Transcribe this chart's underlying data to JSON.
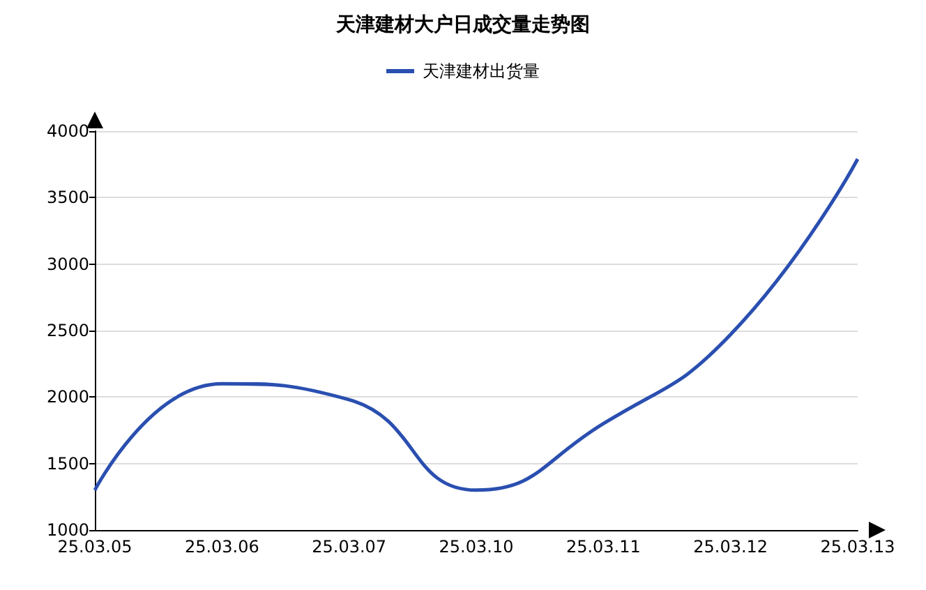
{
  "chart_data": {
    "type": "line",
    "title": "天津建材大户日成交量走势图",
    "categories": [
      "25.03.05",
      "25.03.06",
      "25.03.07",
      "25.03.10",
      "25.03.11",
      "25.03.12",
      "25.03.13"
    ],
    "series": [
      {
        "name": "天津建材出货量",
        "color": "#2a4fb0",
        "values": [
          1300,
          2100,
          1980,
          1300,
          1800,
          2470,
          3790
        ]
      }
    ],
    "ylim": [
      1000,
      4000
    ],
    "yticks": [
      1000,
      1500,
      2000,
      2500,
      3000,
      3500,
      4000
    ],
    "grid": "y",
    "legend": "top",
    "marker": "none",
    "line_style": "solid"
  }
}
